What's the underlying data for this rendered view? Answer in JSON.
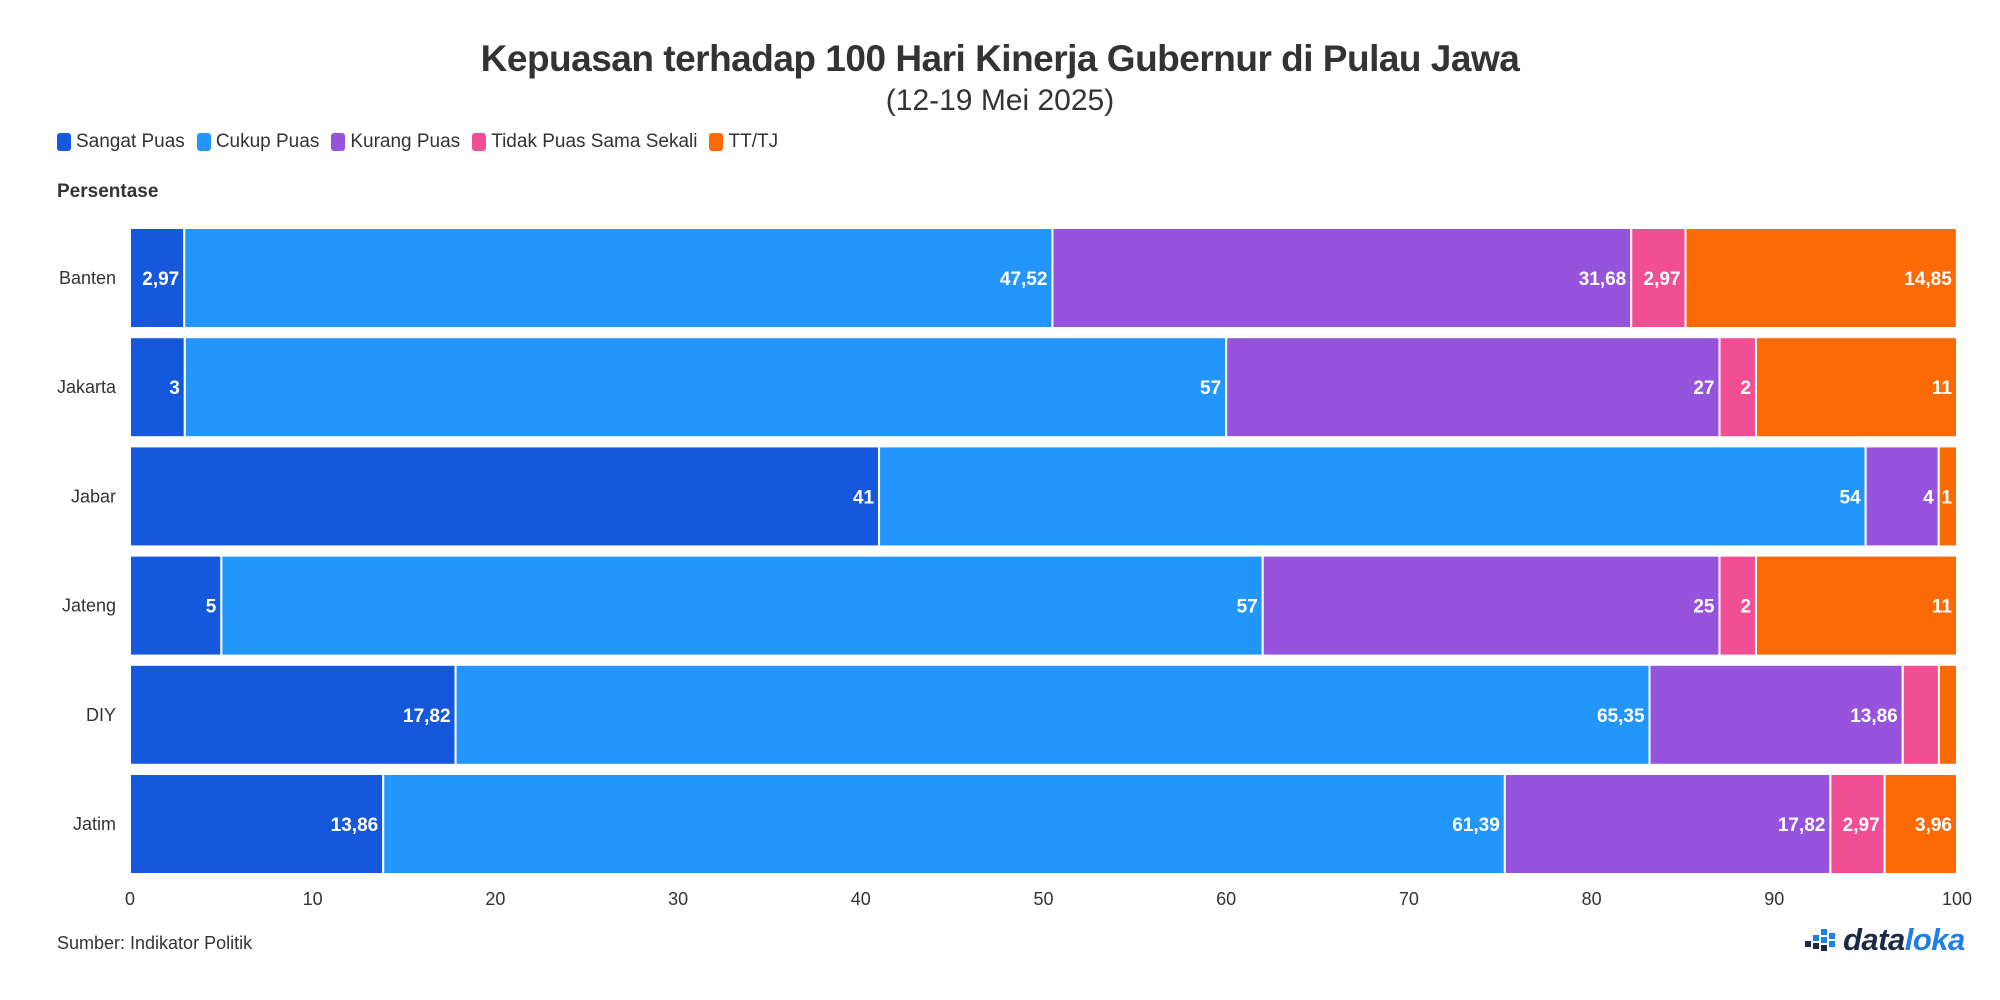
{
  "title": "Kepuasan terhadap 100 Hari Kinerja Gubernur di Pulau Jawa",
  "subtitle": "(12-19 Mei 2025)",
  "axis_caption": "Persentase",
  "source": "Sumber: Indikator Politik",
  "brand": {
    "part1": "data",
    "part2": "loka",
    "icon": "dataloka-logo-icon"
  },
  "chart_data": {
    "type": "bar",
    "orientation": "horizontal",
    "stacked": true,
    "categories": [
      "Banten",
      "Jakarta",
      "Jabar",
      "Jateng",
      "DIY",
      "Jatim"
    ],
    "series": [
      {
        "name": "Sangat Puas",
        "color": "#1658dc",
        "values": [
          2.97,
          3,
          41,
          5,
          17.82,
          13.86
        ],
        "labels": [
          "2,97",
          "3",
          "41",
          "5",
          "17,82",
          "13,86"
        ]
      },
      {
        "name": "Cukup Puas",
        "color": "#2396fb",
        "values": [
          47.52,
          57,
          54,
          57,
          65.35,
          61.39
        ],
        "labels": [
          "47,52",
          "57",
          "54",
          "57",
          "65,35",
          "61,39"
        ]
      },
      {
        "name": "Kurang Puas",
        "color": "#9653dc",
        "values": [
          31.68,
          27,
          4,
          25,
          13.86,
          17.82
        ],
        "labels": [
          "31,68",
          "27",
          "4",
          "25",
          "13,86",
          "17,82"
        ]
      },
      {
        "name": "Tidak Puas Sama Sekali",
        "color": "#f24e93",
        "values": [
          2.97,
          2,
          0,
          2,
          1.98,
          2.97
        ],
        "labels": [
          "2,97",
          "2",
          "",
          "2",
          "",
          "2,97"
        ]
      },
      {
        "name": "TT/TJ",
        "color": "#fb6a04",
        "values": [
          14.85,
          11,
          1,
          11,
          0.99,
          3.96
        ],
        "labels": [
          "14,85",
          "11",
          "1",
          "11",
          "",
          "3,96"
        ]
      }
    ],
    "xlim": [
      0,
      100
    ],
    "xticks": [
      0,
      10,
      20,
      30,
      40,
      50,
      60,
      70,
      80,
      90,
      100
    ],
    "legend_position": "top-left",
    "grid": false
  }
}
